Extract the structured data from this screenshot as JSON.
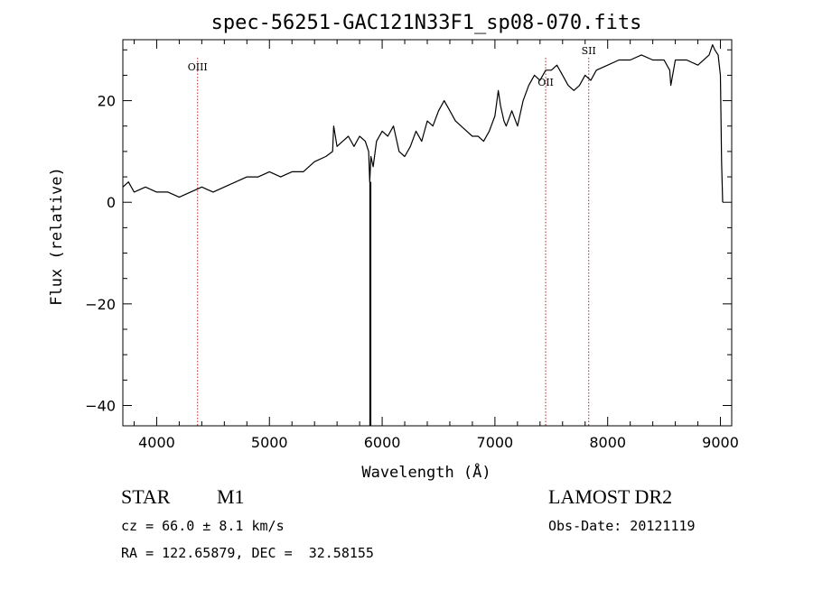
{
  "chart_data": {
    "type": "line",
    "title": "spec-56251-GAC121N33F1_sp08-070.fits",
    "xlabel": "Wavelength (Å)",
    "ylabel": "Flux (relative)",
    "xlim": [
      3700,
      9100
    ],
    "ylim": [
      -44,
      32
    ],
    "x_ticks": [
      4000,
      5000,
      6000,
      7000,
      8000,
      9000
    ],
    "y_ticks": [
      -40,
      -20,
      0,
      20
    ],
    "x_tick_labels": [
      "4000",
      "5000",
      "6000",
      "7000",
      "8000",
      "9000"
    ],
    "y_tick_labels": [
      "−40",
      "−20",
      "0",
      "20"
    ],
    "series": [
      {
        "color": "#000000",
        "x": [
          3700,
          3750,
          3800,
          3900,
          4000,
          4100,
          4200,
          4300,
          4400,
          4500,
          4600,
          4700,
          4800,
          4900,
          5000,
          5100,
          5200,
          5300,
          5400,
          5500,
          5560,
          5570,
          5600,
          5650,
          5700,
          5750,
          5800,
          5850,
          5880,
          5890,
          5900,
          5920,
          5950,
          6000,
          6050,
          6100,
          6150,
          6200,
          6250,
          6300,
          6350,
          6400,
          6450,
          6500,
          6550,
          6600,
          6650,
          6700,
          6750,
          6800,
          6850,
          6900,
          6950,
          7000,
          7030,
          7050,
          7080,
          7100,
          7150,
          7200,
          7250,
          7300,
          7350,
          7400,
          7450,
          7500,
          7550,
          7600,
          7650,
          7700,
          7750,
          7800,
          7850,
          7900,
          8000,
          8100,
          8200,
          8300,
          8400,
          8500,
          8550,
          8560,
          8600,
          8700,
          8800,
          8900,
          8930,
          8950,
          8980,
          9000,
          9010,
          9020
        ],
        "y": [
          3,
          4,
          2,
          3,
          2,
          2,
          1,
          2,
          3,
          2,
          3,
          4,
          5,
          5,
          6,
          5,
          6,
          6,
          8,
          9,
          10,
          15,
          11,
          12,
          13,
          11,
          13,
          12,
          10,
          4,
          9,
          7,
          12,
          14,
          13,
          15,
          10,
          9,
          11,
          14,
          12,
          16,
          15,
          18,
          20,
          18,
          16,
          15,
          14,
          13,
          13,
          12,
          14,
          17,
          22,
          19,
          16,
          15,
          18,
          15,
          20,
          23,
          25,
          24,
          26,
          26,
          27,
          25,
          23,
          22,
          23,
          25,
          24,
          26,
          27,
          28,
          28,
          29,
          28,
          28,
          26,
          23,
          28,
          28,
          27,
          29,
          31,
          30,
          29,
          25,
          8,
          0
        ]
      }
    ],
    "line_markers": [
      {
        "label": "OIII",
        "x": 4363
      },
      {
        "label": "OII",
        "x": 7450
      },
      {
        "label": "SII",
        "x": 7832
      }
    ],
    "absorption_spike": {
      "x": 5895,
      "ymin": -44,
      "ymax": 4
    }
  },
  "info": {
    "class_label": "STAR",
    "subclass_label": "M1",
    "cz_text": "cz = 66.0 ± 8.1 km/s",
    "radec_text": "RA = 122.65879, DEC =  32.58155",
    "survey_label": "LAMOST DR2",
    "obsdate_text": "Obs-Date: 20121119"
  }
}
